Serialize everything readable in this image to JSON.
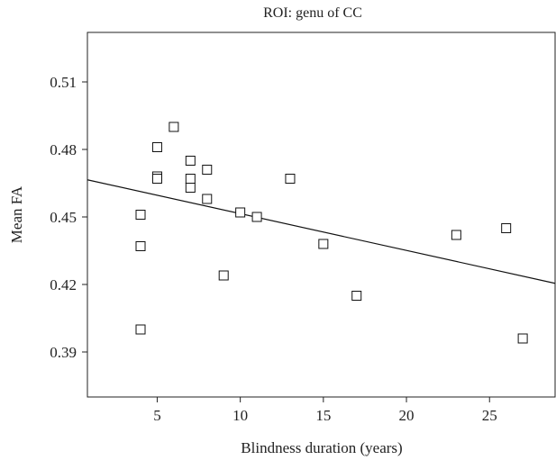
{
  "chart_data": {
    "type": "scatter",
    "title": "ROI: genu of CC",
    "xlabel": "Blindness duration (years)",
    "ylabel": "Mean FA",
    "xlim": [
      0.8,
      29
    ],
    "ylim": [
      0.37,
      0.532
    ],
    "xticks": [
      5,
      10,
      15,
      20,
      25
    ],
    "yticks": [
      0.39,
      0.42,
      0.45,
      0.48,
      0.51
    ],
    "tick_labels_x": [
      "5",
      "10",
      "15",
      "20",
      "25"
    ],
    "tick_labels_y": [
      "0.39",
      "0.42",
      "0.45",
      "0.48",
      "0.51"
    ],
    "grid": false,
    "marker": "open-square",
    "points": [
      {
        "x": 4,
        "y": 0.451
      },
      {
        "x": 4,
        "y": 0.437
      },
      {
        "x": 4,
        "y": 0.4
      },
      {
        "x": 5,
        "y": 0.481
      },
      {
        "x": 5,
        "y": 0.468
      },
      {
        "x": 5,
        "y": 0.467
      },
      {
        "x": 6,
        "y": 0.49
      },
      {
        "x": 7,
        "y": 0.475
      },
      {
        "x": 7,
        "y": 0.467
      },
      {
        "x": 7,
        "y": 0.463
      },
      {
        "x": 8,
        "y": 0.471
      },
      {
        "x": 8,
        "y": 0.458
      },
      {
        "x": 9,
        "y": 0.424
      },
      {
        "x": 10,
        "y": 0.452
      },
      {
        "x": 11,
        "y": 0.45
      },
      {
        "x": 13,
        "y": 0.467
      },
      {
        "x": 15,
        "y": 0.438
      },
      {
        "x": 17,
        "y": 0.415
      },
      {
        "x": 23,
        "y": 0.442
      },
      {
        "x": 26,
        "y": 0.445
      },
      {
        "x": 27,
        "y": 0.396
      }
    ],
    "regression_line": {
      "x1": 0.8,
      "y1": 0.4665,
      "x2": 29,
      "y2": 0.4205
    }
  }
}
